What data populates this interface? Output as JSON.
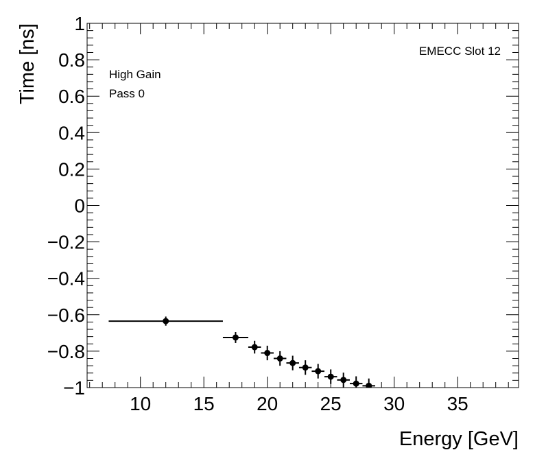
{
  "chart_data": {
    "type": "scatter",
    "title": "",
    "xlabel": "Energy [GeV]",
    "ylabel": "Time [ns]",
    "xlim": [
      5.8,
      39.8
    ],
    "ylim": [
      -1,
      1
    ],
    "x_ticks": [
      {
        "value": 10,
        "label": "10"
      },
      {
        "value": 15,
        "label": "15"
      },
      {
        "value": 20,
        "label": "20"
      },
      {
        "value": 25,
        "label": "25"
      },
      {
        "value": 30,
        "label": "30"
      },
      {
        "value": 35,
        "label": "35"
      }
    ],
    "y_ticks": [
      {
        "value": 1,
        "label": "1"
      },
      {
        "value": 0.8,
        "label": "0.8"
      },
      {
        "value": 0.6,
        "label": "0.6"
      },
      {
        "value": 0.4,
        "label": "0.4"
      },
      {
        "value": 0.2,
        "label": "0.2"
      },
      {
        "value": 0,
        "label": "0"
      },
      {
        "value": -0.2,
        "label": "−0.2"
      },
      {
        "value": -0.4,
        "label": "−0.4"
      },
      {
        "value": -0.6,
        "label": "−0.6"
      },
      {
        "value": -0.8,
        "label": "−0.8"
      },
      {
        "value": -1,
        "label": "−1"
      }
    ],
    "annotations": {
      "top_right": "EMECC Slot 12",
      "gain": "High Gain",
      "pass": "Pass 0"
    },
    "series": [
      {
        "name": "EMECC Slot 12",
        "points": [
          {
            "x": 12.0,
            "y": -0.635,
            "xlow": 7.5,
            "xhigh": 16.5,
            "yerr": 0.025
          },
          {
            "x": 17.5,
            "y": -0.725,
            "xlow": 16.5,
            "xhigh": 18.5,
            "yerr": 0.03
          },
          {
            "x": 19.0,
            "y": -0.778,
            "xlow": 18.5,
            "xhigh": 19.5,
            "yerr": 0.035
          },
          {
            "x": 20.0,
            "y": -0.81,
            "xlow": 19.5,
            "xhigh": 20.5,
            "yerr": 0.04
          },
          {
            "x": 21.0,
            "y": -0.84,
            "xlow": 20.5,
            "xhigh": 21.5,
            "yerr": 0.04
          },
          {
            "x": 22.0,
            "y": -0.865,
            "xlow": 21.5,
            "xhigh": 22.5,
            "yerr": 0.04
          },
          {
            "x": 23.0,
            "y": -0.89,
            "xlow": 22.5,
            "xhigh": 23.5,
            "yerr": 0.04
          },
          {
            "x": 24.0,
            "y": -0.91,
            "xlow": 23.5,
            "xhigh": 24.5,
            "yerr": 0.04
          },
          {
            "x": 25.0,
            "y": -0.94,
            "xlow": 24.5,
            "xhigh": 25.5,
            "yerr": 0.04
          },
          {
            "x": 26.0,
            "y": -0.958,
            "xlow": 25.5,
            "xhigh": 26.5,
            "yerr": 0.04
          },
          {
            "x": 27.0,
            "y": -0.978,
            "xlow": 26.5,
            "xhigh": 27.5,
            "yerr": 0.04
          },
          {
            "x": 28.0,
            "y": -0.99,
            "xlow": 27.5,
            "xhigh": 28.5,
            "yerr": 0.04
          }
        ]
      }
    ]
  }
}
